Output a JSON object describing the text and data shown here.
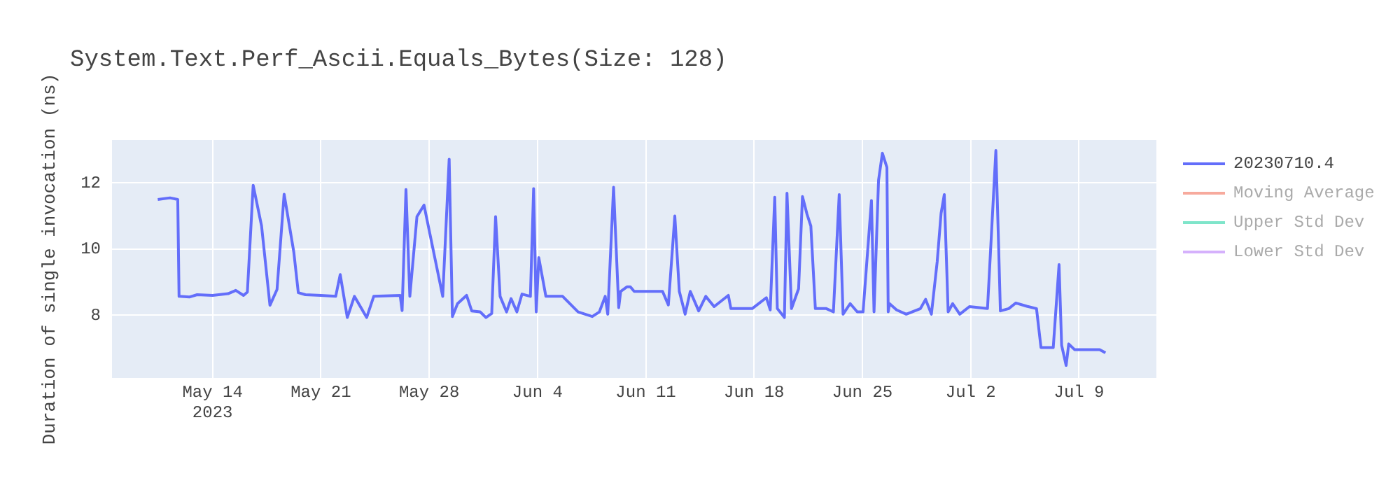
{
  "chart_data": {
    "type": "line",
    "title": "System.Text.Perf_Ascii.Equals_Bytes(Size: 128)",
    "ylabel": "Duration of single invocation (ns)",
    "xlim": [
      "2023-05-07T12:00",
      "2023-07-14T00:00"
    ],
    "xticks": [
      {
        "value": "2023-05-14",
        "label": "May 14\n2023"
      },
      {
        "value": "2023-05-21",
        "label": "May 21"
      },
      {
        "value": "2023-05-28",
        "label": "May 28"
      },
      {
        "value": "2023-06-04",
        "label": "Jun 4"
      },
      {
        "value": "2023-06-11",
        "label": "Jun 11"
      },
      {
        "value": "2023-06-18",
        "label": "Jun 18"
      },
      {
        "value": "2023-06-25",
        "label": "Jun 25"
      },
      {
        "value": "2023-07-02",
        "label": "Jul 2"
      },
      {
        "value": "2023-07-09",
        "label": "Jul 9"
      }
    ],
    "ylim": [
      6.1,
      13.3
    ],
    "yticks": [
      8,
      10,
      12
    ],
    "grid": true,
    "legend": "top right",
    "line_style": "solid",
    "x": [
      "2023-05-10T11:00",
      "2023-05-11T06:00",
      "2023-05-11T18:00",
      "2023-05-11T20:00",
      "2023-05-12T12:00",
      "2023-05-13T00:00",
      "2023-05-14T00:00",
      "2023-05-15T00:00",
      "2023-05-15T12:00",
      "2023-05-16T00:00",
      "2023-05-16T06:00",
      "2023-05-16T15:00",
      "2023-05-17T04:00",
      "2023-05-17T17:00",
      "2023-05-18T04:00",
      "2023-05-18T15:00",
      "2023-05-19T06:00",
      "2023-05-19T13:00",
      "2023-05-20T00:00",
      "2023-05-21T00:00",
      "2023-05-21T23:00",
      "2023-05-22T06:00",
      "2023-05-22T17:00",
      "2023-05-23T04:00",
      "2023-05-23T23:00",
      "2023-05-24T10:00",
      "2023-05-26T03:00",
      "2023-05-26T06:00",
      "2023-05-26T12:00",
      "2023-05-26T18:00",
      "2023-05-27T05:00",
      "2023-05-27T16:00",
      "2023-05-28T21:00",
      "2023-05-29T07:00",
      "2023-05-29T12:00",
      "2023-05-29T20:00",
      "2023-05-30T10:00",
      "2023-05-30T18:00",
      "2023-05-31T07:00",
      "2023-05-31T16:00",
      "2023-06-01T01:00",
      "2023-06-01T07:00",
      "2023-06-01T14:00",
      "2023-06-02T00:00",
      "2023-06-02T07:00",
      "2023-06-02T16:00",
      "2023-06-03T00:00",
      "2023-06-03T13:00",
      "2023-06-03T18:00",
      "2023-06-03T22:00",
      "2023-06-04T02:00",
      "2023-06-04T13:00",
      "2023-06-05T15:00",
      "2023-06-06T15:00",
      "2023-06-07T13:00",
      "2023-06-08T00:00",
      "2023-06-08T09:00",
      "2023-06-08T13:00",
      "2023-06-08T22:00",
      "2023-06-09T06:00",
      "2023-06-09T09:00",
      "2023-06-09T19:00",
      "2023-06-10T00:00",
      "2023-06-10T06:00",
      "2023-06-12T02:00",
      "2023-06-12T11:00",
      "2023-06-12T21:00",
      "2023-06-13T04:00",
      "2023-06-13T13:00",
      "2023-06-13T21:00",
      "2023-06-14T10:00",
      "2023-06-14T21:00",
      "2023-06-15T10:00",
      "2023-06-16T08:00",
      "2023-06-16T12:00",
      "2023-06-17T21:00",
      "2023-06-18T19:00",
      "2023-06-19T01:00",
      "2023-06-19T08:00",
      "2023-06-19T12:00",
      "2023-06-19T23:00",
      "2023-06-20T03:00",
      "2023-06-20T10:00",
      "2023-06-20T21:00",
      "2023-06-21T03:00",
      "2023-06-21T10:00",
      "2023-06-21T16:00",
      "2023-06-21T23:00",
      "2023-06-22T16:00",
      "2023-06-23T03:00",
      "2023-06-23T12:00",
      "2023-06-23T18:00",
      "2023-06-24T05:00",
      "2023-06-24T16:00",
      "2023-06-25T01:00",
      "2023-06-25T14:00",
      "2023-06-25T18:00",
      "2023-06-26T01:00",
      "2023-06-26T07:00",
      "2023-06-26T14:00",
      "2023-06-26T16:00",
      "2023-06-26T18:00",
      "2023-06-27T05:00",
      "2023-06-27T20:00",
      "2023-06-28T18:00",
      "2023-06-29T02:00",
      "2023-06-29T11:00",
      "2023-06-29T20:00",
      "2023-06-30T02:00",
      "2023-06-30T07:00",
      "2023-06-30T13:00",
      "2023-06-30T20:00",
      "2023-07-01T07:00",
      "2023-07-01T22:00",
      "2023-07-03T02:00",
      "2023-07-03T15:00",
      "2023-07-03T19:00",
      "2023-07-03T22:00",
      "2023-07-04T11:00",
      "2023-07-04T22:00",
      "2023-07-05T15:00",
      "2023-07-06T06:00",
      "2023-07-06T13:00",
      "2023-07-07T08:00",
      "2023-07-07T17:00",
      "2023-07-07T21:00",
      "2023-07-08T04:00",
      "2023-07-08T08:00",
      "2023-07-08T17:00",
      "2023-07-10T08:00",
      "2023-07-10T17:00"
    ],
    "series": [
      {
        "name": "20230710.4",
        "color": "#636efa",
        "values": [
          11.5,
          11.55,
          11.5,
          8.57,
          8.55,
          8.62,
          8.6,
          8.65,
          8.75,
          8.6,
          8.7,
          11.93,
          10.7,
          8.3,
          8.78,
          11.66,
          9.91,
          8.68,
          8.62,
          8.6,
          8.57,
          9.23,
          7.93,
          8.57,
          7.93,
          8.57,
          8.6,
          8.14,
          11.8,
          8.57,
          10.98,
          11.33,
          8.57,
          12.72,
          7.96,
          8.35,
          8.6,
          8.13,
          8.1,
          7.93,
          8.05,
          10.98,
          8.57,
          8.1,
          8.5,
          8.1,
          8.64,
          8.57,
          11.83,
          8.1,
          9.74,
          8.57,
          8.57,
          8.1,
          7.96,
          8.1,
          8.57,
          8.03,
          11.87,
          8.23,
          8.72,
          8.86,
          8.86,
          8.72,
          8.72,
          8.31,
          11.0,
          8.72,
          8.03,
          8.72,
          8.13,
          8.57,
          8.26,
          8.6,
          8.2,
          8.2,
          8.53,
          8.16,
          11.57,
          8.2,
          7.93,
          11.69,
          8.2,
          8.8,
          11.59,
          11.06,
          10.7,
          8.2,
          8.2,
          8.1,
          11.65,
          8.03,
          8.35,
          8.1,
          8.1,
          11.47,
          8.1,
          12.08,
          12.9,
          12.47,
          8.1,
          8.35,
          8.16,
          8.03,
          8.2,
          8.48,
          8.03,
          9.62,
          11.08,
          11.65,
          8.1,
          8.35,
          8.03,
          8.26,
          8.2,
          12.98,
          10.27,
          8.13,
          8.2,
          8.37,
          8.27,
          8.2,
          7.02,
          7.02,
          9.53,
          7.09,
          6.48,
          7.13,
          6.96,
          6.96,
          6.86
        ]
      },
      {
        "name": "Moving Average",
        "color": "#ef553b",
        "values": [
          null,
          null,
          null,
          null,
          null,
          null,
          null,
          null,
          null,
          null,
          null,
          null,
          null,
          null,
          null,
          null,
          null,
          null,
          null,
          null,
          null,
          null,
          null,
          null,
          null,
          null,
          null,
          null,
          null,
          null,
          null,
          null,
          null,
          null,
          null,
          null,
          null,
          null,
          null,
          null,
          null,
          null,
          null,
          null,
          null,
          null,
          null,
          null,
          null,
          null,
          null,
          null,
          null,
          null,
          null,
          null,
          null,
          null,
          null,
          null,
          null,
          null,
          null,
          null,
          null,
          null,
          null,
          null,
          null,
          null,
          null,
          null,
          null,
          null,
          null,
          null,
          null,
          null,
          null,
          null,
          null,
          null,
          null,
          null,
          null,
          null,
          null,
          null,
          null,
          null,
          null,
          null,
          null,
          null,
          null,
          null,
          null,
          null,
          null,
          null,
          null,
          null,
          null,
          null,
          null,
          null,
          null,
          null,
          null,
          null,
          null,
          null,
          null,
          null,
          null,
          null,
          null,
          null,
          null,
          null,
          null,
          null,
          null,
          null,
          null,
          null,
          null,
          null,
          null,
          null,
          null
        ]
      },
      {
        "name": "Upper Std Dev",
        "color": "#00cc96",
        "values": [
          null,
          null,
          null,
          null,
          null,
          null,
          null,
          null,
          null,
          null,
          null,
          null,
          null,
          null,
          null,
          null,
          null,
          null,
          null,
          null,
          null,
          null,
          null,
          null,
          null,
          null,
          null,
          null,
          null,
          null,
          null,
          null,
          null,
          null,
          null,
          null,
          null,
          null,
          null,
          null,
          null,
          null,
          null,
          null,
          null,
          null,
          null,
          null,
          null,
          null,
          null,
          null,
          null,
          null,
          null,
          null,
          null,
          null,
          null,
          null,
          null,
          null,
          null,
          null,
          null,
          null,
          null,
          null,
          null,
          null,
          null,
          null,
          null,
          null,
          null,
          null,
          null,
          null,
          null,
          null,
          null,
          null,
          null,
          null,
          null,
          null,
          null,
          null,
          null,
          null,
          null,
          null,
          null,
          null,
          null,
          null,
          null,
          null,
          null,
          null,
          null,
          null,
          null,
          null,
          null,
          null,
          null,
          null,
          null,
          null,
          null,
          null,
          null,
          null,
          null,
          null,
          null,
          null,
          null,
          null,
          null,
          null,
          null,
          null,
          null,
          null,
          null,
          null,
          null,
          null,
          null
        ]
      },
      {
        "name": "Lower Std Dev",
        "color": "#ab63fa",
        "values": [
          null,
          null,
          null,
          null,
          null,
          null,
          null,
          null,
          null,
          null,
          null,
          null,
          null,
          null,
          null,
          null,
          null,
          null,
          null,
          null,
          null,
          null,
          null,
          null,
          null,
          null,
          null,
          null,
          null,
          null,
          null,
          null,
          null,
          null,
          null,
          null,
          null,
          null,
          null,
          null,
          null,
          null,
          null,
          null,
          null,
          null,
          null,
          null,
          null,
          null,
          null,
          null,
          null,
          null,
          null,
          null,
          null,
          null,
          null,
          null,
          null,
          null,
          null,
          null,
          null,
          null,
          null,
          null,
          null,
          null,
          null,
          null,
          null,
          null,
          null,
          null,
          null,
          null,
          null,
          null,
          null,
          null,
          null,
          null,
          null,
          null,
          null,
          null,
          null,
          null,
          null,
          null,
          null,
          null,
          null,
          null,
          null,
          null,
          null,
          null,
          null,
          null,
          null,
          null,
          null,
          null,
          null,
          null,
          null,
          null,
          null,
          null,
          null,
          null,
          null,
          null,
          null,
          null,
          null,
          null,
          null,
          null,
          null,
          null,
          null,
          null,
          null,
          null,
          null,
          null,
          null
        ]
      }
    ]
  }
}
